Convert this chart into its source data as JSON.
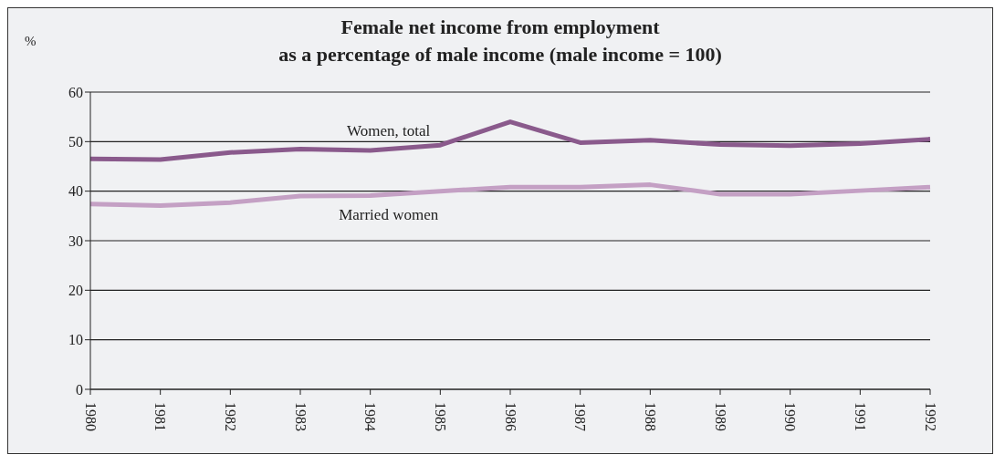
{
  "chart_data": {
    "type": "line",
    "title": "Female net income from employment\nas a percentage of male income (male income = 100)",
    "ylabel": "%",
    "categories": [
      "1980",
      "1981",
      "1982",
      "1983",
      "1984",
      "1985",
      "1986",
      "1987",
      "1988",
      "1989",
      "1990",
      "1991",
      "1992"
    ],
    "series": [
      {
        "name": "Women, total",
        "color": "#8a5a8c",
        "values": [
          46.5,
          46.4,
          47.8,
          48.5,
          48.2,
          49.3,
          54,
          49.8,
          50.3,
          49.4,
          49.2,
          49.6,
          50.5
        ]
      },
      {
        "name": "Married women",
        "color": "#c4a0c4",
        "values": [
          37.4,
          37.1,
          37.7,
          39,
          39.1,
          40,
          40.8,
          40.8,
          41.3,
          39.4,
          39.4,
          40.1,
          40.8
        ]
      }
    ],
    "ylim": [
      0,
      60
    ],
    "yticks": [
      0,
      10,
      20,
      30,
      40,
      50,
      60
    ],
    "grid": "y",
    "legend": false,
    "marker": "none",
    "line_style": "solid"
  }
}
